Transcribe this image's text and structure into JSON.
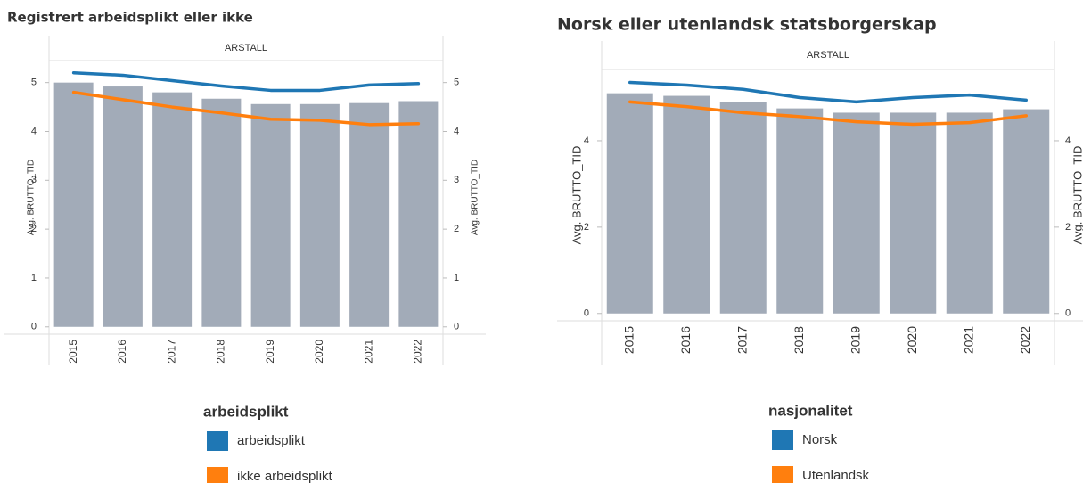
{
  "chart_data": [
    {
      "type": "bar_line",
      "title": "Registrert arbeidsplikt eller ikke",
      "x_label": "ARSTALL",
      "y_label": "Avg. BRUTTO_TID",
      "y2_label": "Avg. BRUTTO_TID",
      "categories": [
        "2015",
        "2016",
        "2017",
        "2018",
        "2019",
        "2020",
        "2021",
        "2022"
      ],
      "bar_values": [
        5.0,
        4.92,
        4.8,
        4.67,
        4.56,
        4.56,
        4.58,
        4.62
      ],
      "bar_color": "#a2abb8",
      "series": [
        {
          "name": "arbeidsplikt",
          "color": "#1f77b4",
          "values": [
            5.2,
            5.15,
            5.04,
            4.93,
            4.84,
            4.84,
            4.95,
            4.98
          ]
        },
        {
          "name": "ikke arbeidsplikt",
          "color": "#ff7f0e",
          "values": [
            4.8,
            4.65,
            4.5,
            4.38,
            4.25,
            4.23,
            4.14,
            4.16
          ]
        }
      ],
      "legend_title": "arbeidsplikt",
      "ylim": [
        -0.15,
        5.45
      ],
      "yticks": [
        0,
        1,
        2,
        3,
        4,
        5
      ],
      "y2lim": [
        -0.15,
        5.45
      ],
      "y2ticks": [
        0,
        1,
        2,
        3,
        4,
        5
      ],
      "grid": false
    },
    {
      "type": "bar_line",
      "title": "Norsk eller utenlandsk statsborgerskap",
      "x_label": "ARSTALL",
      "y_label": "Avg. BRUTTO_TID",
      "y2_label": "Avg. BRUTTO_TID",
      "categories": [
        "2015",
        "2016",
        "2017",
        "2018",
        "2019",
        "2020",
        "2021",
        "2022"
      ],
      "bar_values": [
        5.1,
        5.04,
        4.9,
        4.75,
        4.65,
        4.65,
        4.65,
        4.73
      ],
      "bar_color": "#a2abb8",
      "series": [
        {
          "name": "Norsk",
          "color": "#1f77b4",
          "values": [
            5.35,
            5.29,
            5.19,
            5.0,
            4.9,
            5.0,
            5.06,
            4.94
          ]
        },
        {
          "name": "Utenlandsk",
          "color": "#ff7f0e",
          "values": [
            4.9,
            4.79,
            4.65,
            4.56,
            4.44,
            4.38,
            4.42,
            4.58
          ]
        }
      ],
      "legend_title": "nasjonalitet",
      "ylim": [
        -0.17,
        5.65
      ],
      "yticks": [
        0,
        2,
        4
      ],
      "y2lim": [
        -0.17,
        5.65
      ],
      "y2ticks": [
        0,
        2,
        4
      ],
      "grid": false
    }
  ]
}
